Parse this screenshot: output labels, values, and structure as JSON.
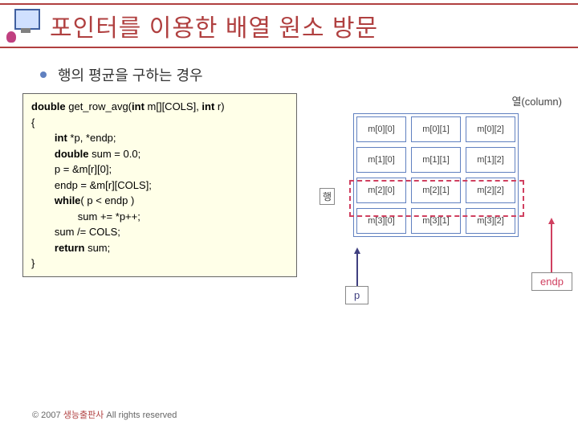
{
  "header": {
    "title": "포인터를 이용한 배열 원소 방문"
  },
  "subtitle": "행의 평균을 구하는 경우",
  "code": {
    "lines": [
      "double get_row_avg(int m[][COLS], int r)",
      "{",
      "        int *p, *endp;",
      "        double sum = 0.0;",
      "",
      "        p = &m[r][0];",
      "        endp = &m[r][COLS];",
      "",
      "        while( p < endp )",
      "                sum += *p++;",
      "",
      "        sum /= COLS;",
      "",
      "        return sum;",
      "}"
    ]
  },
  "diagram": {
    "column_label": "열(column)",
    "row_label": "행",
    "rows": [
      [
        "m[0][0]",
        "m[0][1]",
        "m[0][2]"
      ],
      [
        "m[1][0]",
        "m[1][1]",
        "m[1][2]"
      ],
      [
        "m[2][0]",
        "m[2][1]",
        "m[2][2]"
      ],
      [
        "m[3][0]",
        "m[3][1]",
        "m[3][2]"
      ]
    ],
    "pointer_p": "p",
    "pointer_endp": "endp",
    "cell_border_color": "#6080c0",
    "dash_color": "#d04060",
    "p_color": "#404080",
    "endp_color": "#d04060"
  },
  "footer": {
    "copyright": "© 2007 ",
    "publisher": "생능출판사",
    "rights": " All rights reserved"
  },
  "colors": {
    "title_color": "#b04040",
    "code_bg": "#ffffe8",
    "bullet_color": "#6080c0"
  }
}
